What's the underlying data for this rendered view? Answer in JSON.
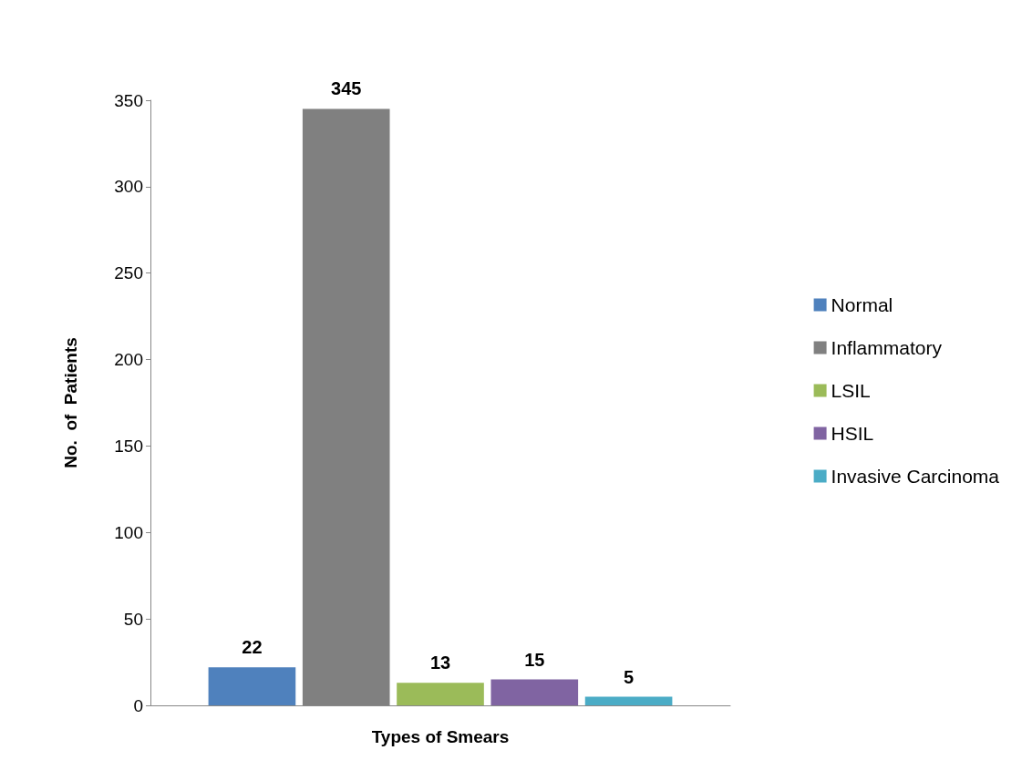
{
  "chart_data": {
    "type": "bar",
    "xlabel": "Types of Smears",
    "ylabel": "No.  of  Patients",
    "categories": [
      null
    ],
    "series": [
      {
        "name": "Normal",
        "color": "#4f81bd",
        "values": [
          22
        ]
      },
      {
        "name": "Inflammatory",
        "color": "#808080",
        "values": [
          345
        ]
      },
      {
        "name": "LSIL",
        "color": "#9bbb59",
        "values": [
          13
        ]
      },
      {
        "name": "HSIL",
        "color": "#8064a2",
        "values": [
          15
        ]
      },
      {
        "name": "Invasive Carcinoma",
        "color": "#4bacc6",
        "values": [
          5
        ]
      }
    ],
    "ylim": [
      0,
      350
    ],
    "yticks": [
      0,
      50,
      100,
      150,
      200,
      250,
      300,
      350
    ],
    "grid": false,
    "legend": "right",
    "data_labels": true
  }
}
